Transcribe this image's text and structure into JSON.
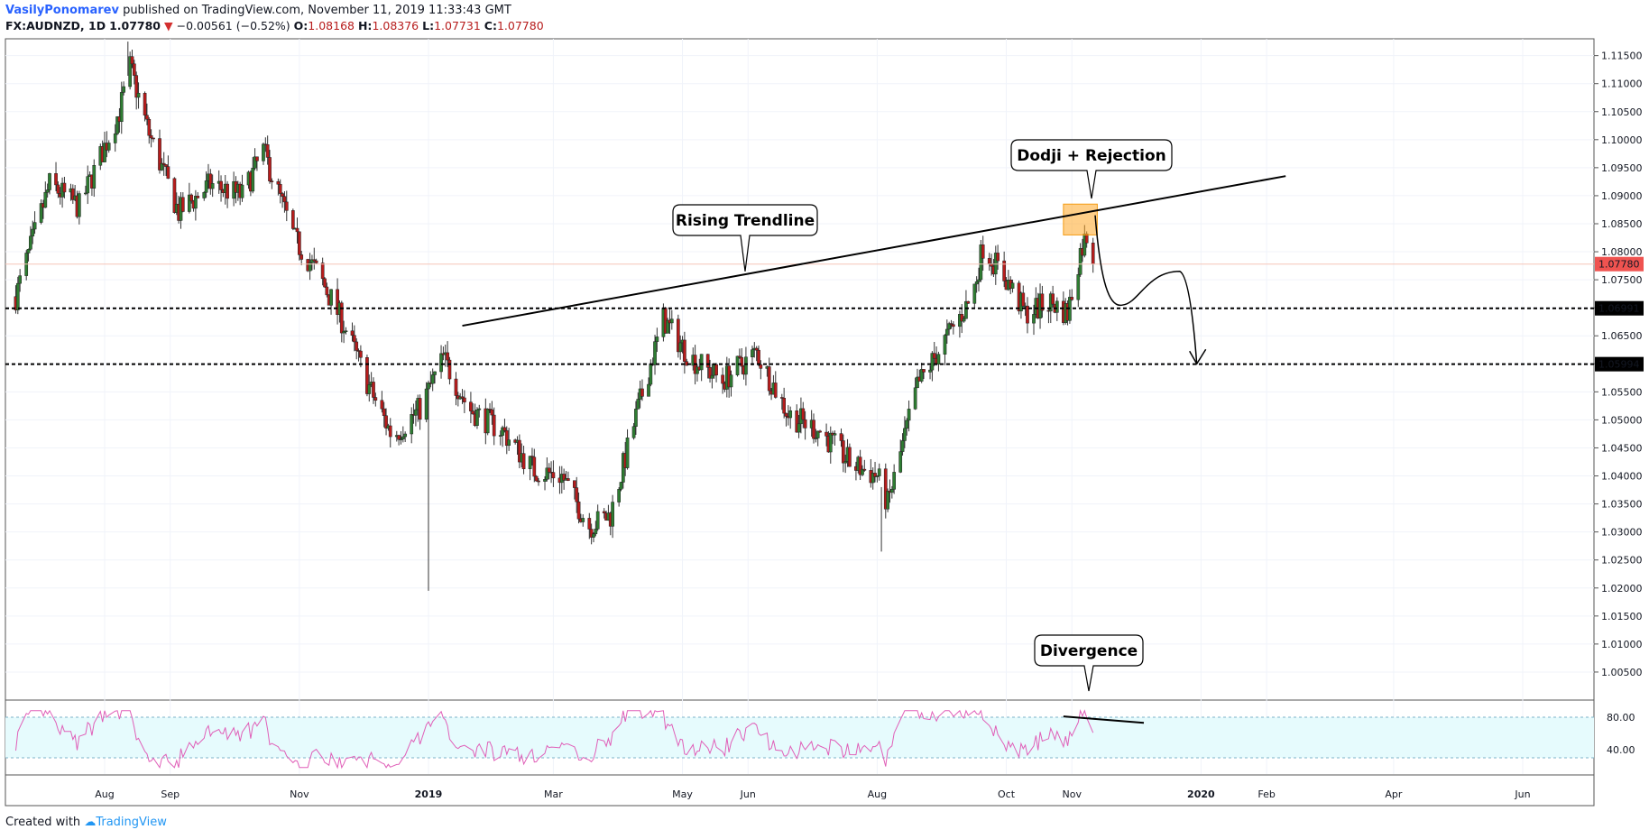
{
  "header": {
    "author": "VasilyPonomarev",
    "published": "published on TradingView.com, November 11, 2019 11:33:43 GMT",
    "symbol": "FX:AUDNZD, 1D",
    "last": "1.07780",
    "change": "−0.00561 (−0.52%)",
    "open_label": "O:",
    "open": "1.08168",
    "high_label": "H:",
    "high": "1.08376",
    "low_label": "L:",
    "low": "1.07731",
    "close_label": "C:",
    "close": "1.07780"
  },
  "footer": {
    "created": "Created with",
    "brand": "TradingView"
  },
  "colors": {
    "up": "#2e7d32",
    "down": "#b71c1c",
    "rsi": "#e05fb8",
    "rsi_band": "#e6fbfd",
    "price_tag": "#ef5350"
  },
  "chart_data": {
    "type": "candlestick",
    "ylim": [
      1.0,
      1.118
    ],
    "y_ticks": [
      1.005,
      1.01,
      1.015,
      1.02,
      1.025,
      1.03,
      1.035,
      1.04,
      1.045,
      1.05,
      1.055,
      1.06,
      1.065,
      1.07,
      1.075,
      1.08,
      1.085,
      1.09,
      1.095,
      1.1,
      1.105,
      1.11,
      1.115
    ],
    "y_tick_labels": [
      "1.00500",
      "1.01000",
      "1.01500",
      "1.02000",
      "1.02500",
      "1.03000",
      "1.03500",
      "1.04000",
      "1.04500",
      "1.05000",
      "1.05500",
      "1.06000",
      "1.06500",
      "1.07000",
      "1.07500",
      "1.08000",
      "1.08500",
      "1.09000",
      "1.09500",
      "1.10000",
      "1.10500",
      "1.11000",
      "1.11500"
    ],
    "x_ticks": [
      {
        "label": "Aug",
        "date": "2018-08-01"
      },
      {
        "label": "Sep",
        "date": "2018-09-01"
      },
      {
        "label": "Nov",
        "date": "2018-11-01"
      },
      {
        "label": "2019",
        "date": "2019-01-01"
      },
      {
        "label": "Mar",
        "date": "2019-03-01"
      },
      {
        "label": "May",
        "date": "2019-05-01"
      },
      {
        "label": "Jun",
        "date": "2019-06-01"
      },
      {
        "label": "Aug",
        "date": "2019-08-01"
      },
      {
        "label": "Oct",
        "date": "2019-10-01"
      },
      {
        "label": "Nov",
        "date": "2019-11-01"
      },
      {
        "label": "2020",
        "date": "2020-01-01"
      },
      {
        "label": "Feb",
        "date": "2020-02-01"
      },
      {
        "label": "Apr",
        "date": "2020-04-01"
      },
      {
        "label": "Jun",
        "date": "2020-06-01"
      }
    ],
    "price_path": [
      [
        "2018-06-20",
        1.072
      ],
      [
        "2018-07-06",
        1.092
      ],
      [
        "2018-07-20",
        1.088
      ],
      [
        "2018-08-08",
        1.105
      ],
      [
        "2018-08-13",
        1.113
      ],
      [
        "2018-08-22",
        1.101
      ],
      [
        "2018-09-05",
        1.087
      ],
      [
        "2018-09-20",
        1.092
      ],
      [
        "2018-10-05",
        1.09
      ],
      [
        "2018-10-15",
        1.098
      ],
      [
        "2018-10-30",
        1.082
      ],
      [
        "2018-11-10",
        1.076
      ],
      [
        "2018-11-22",
        1.067
      ],
      [
        "2018-12-05",
        1.055
      ],
      [
        "2018-12-15",
        1.047
      ],
      [
        "2018-12-28",
        1.052
      ],
      [
        "2019-01-08",
        1.061
      ],
      [
        "2019-01-20",
        1.052
      ],
      [
        "2019-02-05",
        1.048
      ],
      [
        "2019-02-20",
        1.041
      ],
      [
        "2019-03-05",
        1.04
      ],
      [
        "2019-03-18",
        1.031
      ],
      [
        "2019-03-28",
        1.033
      ],
      [
        "2019-04-10",
        1.052
      ],
      [
        "2019-04-22",
        1.068
      ],
      [
        "2019-05-05",
        1.061
      ],
      [
        "2019-05-20",
        1.057
      ],
      [
        "2019-06-05",
        1.062
      ],
      [
        "2019-06-20",
        1.051
      ],
      [
        "2019-07-05",
        1.048
      ],
      [
        "2019-07-20",
        1.042
      ],
      [
        "2019-08-01",
        1.04
      ],
      [
        "2019-08-06",
        1.035
      ],
      [
        "2019-08-20",
        1.056
      ],
      [
        "2019-09-05",
        1.066
      ],
      [
        "2019-09-15",
        1.072
      ],
      [
        "2019-09-20",
        1.081
      ],
      [
        "2019-10-01",
        1.075
      ],
      [
        "2019-10-10",
        1.069
      ],
      [
        "2019-10-22",
        1.071
      ],
      [
        "2019-10-30",
        1.069
      ],
      [
        "2019-11-05",
        1.08
      ],
      [
        "2019-11-08",
        1.083
      ],
      [
        "2019-11-11",
        1.0778
      ]
    ],
    "wick_spikes": [
      {
        "date": "2019-01-01",
        "low": 1.0195
      },
      {
        "date": "2019-08-03",
        "low": 1.0265
      },
      {
        "date": "2018-08-12",
        "high": 1.1175
      }
    ],
    "horizontal_levels": [
      {
        "price": 1.06991,
        "label": "1.06991"
      },
      {
        "price": 1.05994,
        "label": "1.05994"
      }
    ],
    "last_price": {
      "price": 1.0778,
      "label": "1.07780"
    },
    "trendline": {
      "start": [
        "2019-01-17",
        1.0668
      ],
      "end": [
        "2020-02-10",
        1.0935
      ]
    },
    "projection_path": [
      [
        "2019-11-12",
        1.0865
      ],
      [
        "2019-11-25",
        1.0705
      ],
      [
        "2019-12-10",
        1.074
      ],
      [
        "2019-12-22",
        1.0765
      ],
      [
        "2019-12-30",
        1.06
      ]
    ],
    "annotations": [
      {
        "text": "Rising Trendline",
        "date": "2019-06-10",
        "price": 1.0765
      },
      {
        "text": "Dodji + Rejection",
        "date": "2019-11-05",
        "price": 1.0895
      },
      {
        "text": "Divergence"
      }
    ],
    "highlight_box": {
      "start": "2019-10-28",
      "end": "2019-11-13",
      "top": 1.0885,
      "bottom": 1.083
    },
    "rsi": {
      "ylim": [
        10,
        100
      ],
      "ticks": [
        40,
        80
      ],
      "tick_labels": [
        "40.00",
        "80.00"
      ],
      "band": [
        30,
        80
      ],
      "divergence_line": {
        "start": [
          "2019-10-28",
          81
        ],
        "end": [
          "2019-12-05",
          73
        ]
      }
    }
  }
}
